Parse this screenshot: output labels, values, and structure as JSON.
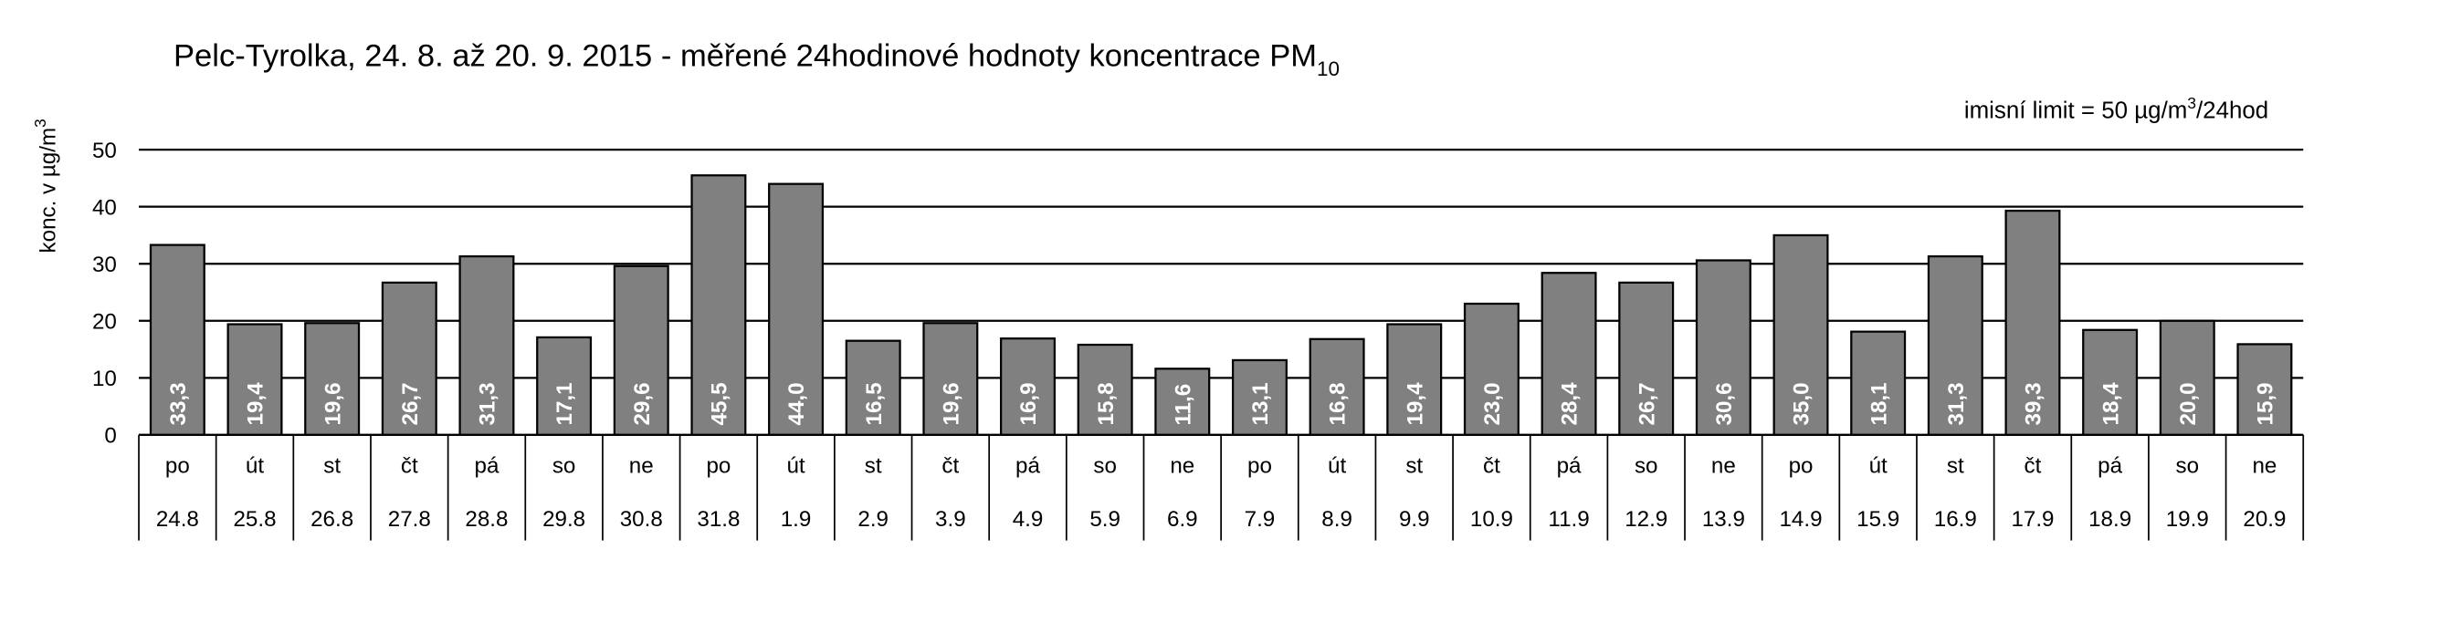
{
  "chart_data": {
    "type": "bar",
    "title": "Pelc-Tyrolka, 24. 8. až 20. 9. 2015 - měřené 24hodinové hodnoty koncentrace PM",
    "title_subscript": "10",
    "y_label": "konc. v µg/m",
    "y_label_superscript": "3",
    "annotation": [
      "imisní limit = 50 µg/m",
      "3",
      "/24hod"
    ],
    "categories": [
      "po",
      "út",
      "st",
      "čt",
      "pá",
      "so",
      "ne",
      "po",
      "út",
      "st",
      "čt",
      "pá",
      "so",
      "ne",
      "po",
      "út",
      "st",
      "čt",
      "pá",
      "so",
      "ne",
      "po",
      "út",
      "st",
      "čt",
      "pá",
      "so",
      "ne"
    ],
    "category_dates": [
      "24.8",
      "25.8",
      "26.8",
      "27.8",
      "28.8",
      "29.8",
      "30.8",
      "31.8",
      "1.9",
      "2.9",
      "3.9",
      "4.9",
      "5.9",
      "6.9",
      "7.9",
      "8.9",
      "9.9",
      "10.9",
      "11.9",
      "12.9",
      "13.9",
      "14.9",
      "15.9",
      "16.9",
      "17.9",
      "18.9",
      "19.9",
      "20.9"
    ],
    "values": [
      33.3,
      19.4,
      19.6,
      26.7,
      31.3,
      17.1,
      29.6,
      45.5,
      44.0,
      16.5,
      19.6,
      16.9,
      15.8,
      11.6,
      13.1,
      16.8,
      19.4,
      23.0,
      28.4,
      26.7,
      30.6,
      35.0,
      18.1,
      31.3,
      39.3,
      18.4,
      20.0,
      15.9
    ],
    "value_labels": [
      "33,3",
      "19,4",
      "19,6",
      "26,7",
      "31,3",
      "17,1",
      "29,6",
      "45,5",
      "44,0",
      "16,5",
      "19,6",
      "16,9",
      "15,8",
      "11,6",
      "13,1",
      "16,8",
      "19,4",
      "23,0",
      "28,4",
      "26,7",
      "30,6",
      "35,0",
      "18,1",
      "31,3",
      "39,3",
      "18,4",
      "20,0",
      "15,9"
    ],
    "color": "#808080",
    "ylim": [
      0,
      50
    ],
    "yticks": [
      0,
      10,
      20,
      30,
      40,
      50
    ],
    "grid": true
  }
}
